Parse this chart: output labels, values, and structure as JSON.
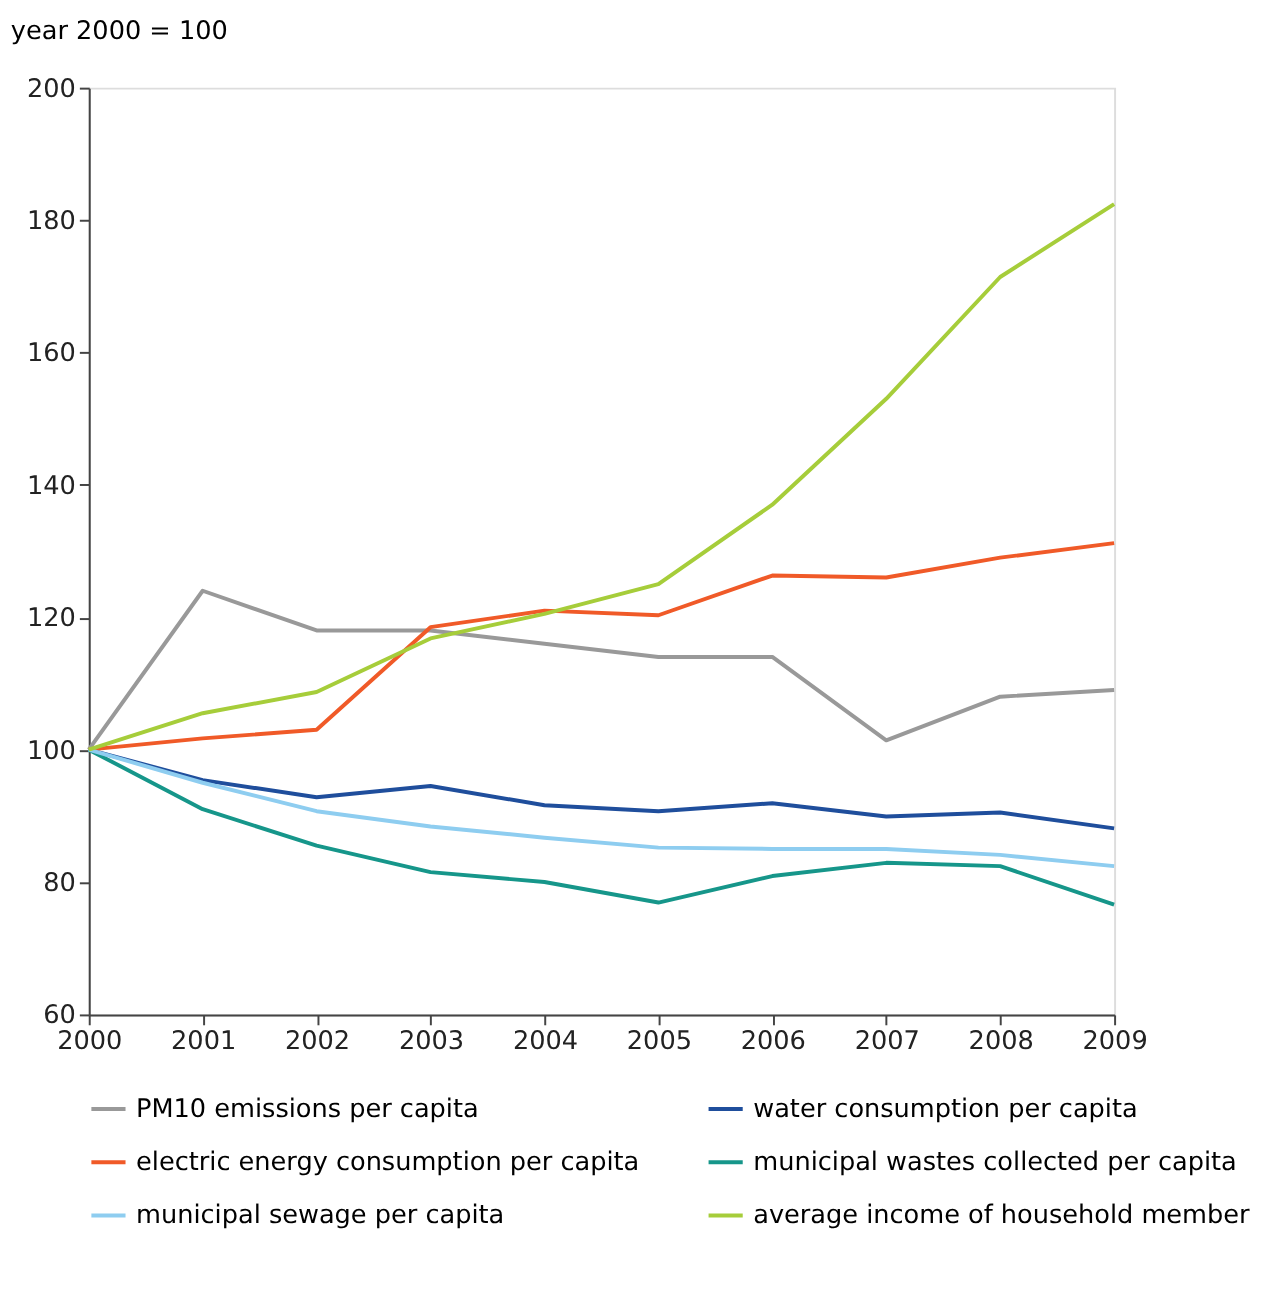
{
  "chart_data": {
    "type": "line",
    "ylabel": "year 2000 = 100",
    "x": [
      2000,
      2001,
      2002,
      2003,
      2004,
      2005,
      2006,
      2007,
      2008,
      2009
    ],
    "xlim": [
      2000,
      2009
    ],
    "xticks": [
      2000,
      2001,
      2002,
      2003,
      2004,
      2005,
      2006,
      2007,
      2008,
      2009
    ],
    "ylim": [
      60,
      200
    ],
    "yticks": [
      60,
      80,
      100,
      120,
      140,
      160,
      180,
      200
    ],
    "grid": false,
    "legend": "bottom",
    "marker": "none",
    "line_style": "solid",
    "series": [
      {
        "name": "PM10 emissions per capita",
        "color": "#999999",
        "values": [
          100,
          124,
          118,
          118,
          116,
          114,
          114,
          101.4,
          108,
          109
        ]
      },
      {
        "name": "water consumption per capita",
        "color": "#1f4e9c",
        "values": [
          100,
          95.4,
          92.8,
          94.5,
          91.6,
          90.7,
          91.9,
          89.9,
          90.5,
          88.1
        ]
      },
      {
        "name": "electric energy consumption per capita",
        "color": "#f05a28",
        "values": [
          100,
          101.7,
          103,
          118.5,
          121,
          120.3,
          126.3,
          126,
          129,
          131.2
        ]
      },
      {
        "name": "municipal wastes collected per capita",
        "color": "#16968a",
        "values": [
          100,
          91,
          85.5,
          81.5,
          80,
          76.9,
          80.9,
          82.9,
          82.4,
          76.6
        ]
      },
      {
        "name": "municipal sewage per capita",
        "color": "#8ecdf0",
        "values": [
          100,
          95,
          90.7,
          88.4,
          86.7,
          85.2,
          85,
          85,
          84.1,
          82.4
        ]
      },
      {
        "name": "average income of household member",
        "color": "#a6cd3a",
        "values": [
          100,
          105.5,
          108.7,
          116.8,
          120.5,
          125,
          137,
          153,
          171.4,
          182.4
        ]
      }
    ]
  }
}
